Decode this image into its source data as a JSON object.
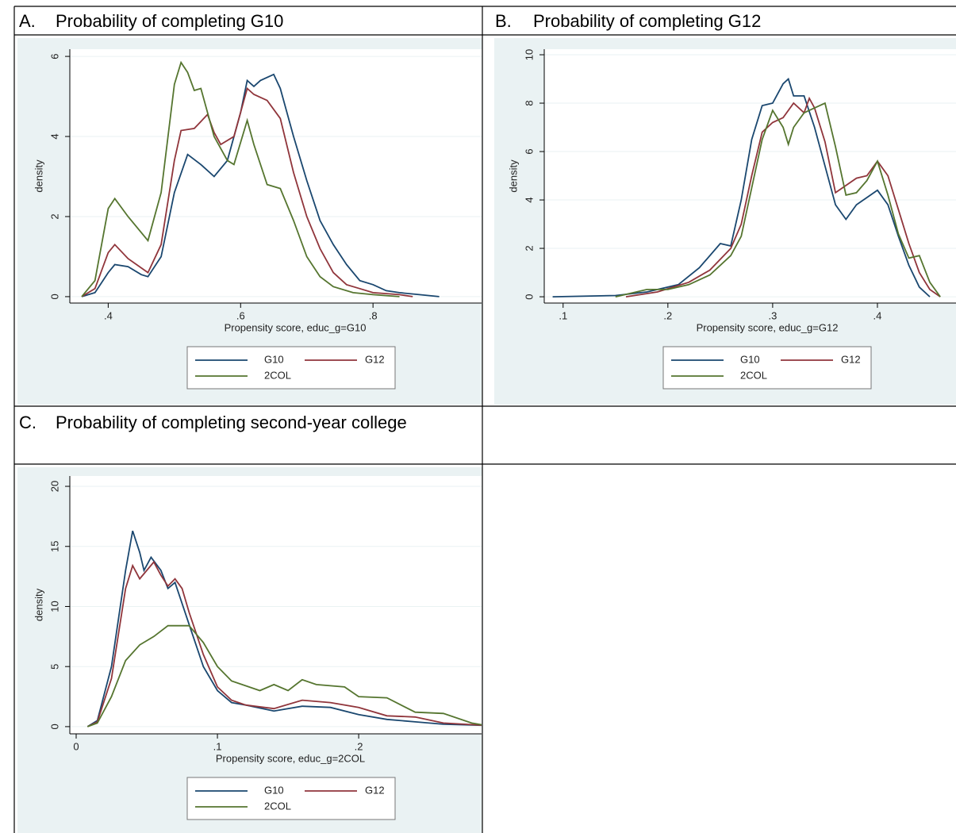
{
  "chart_data": [
    {
      "type": "line",
      "label": "A.",
      "title": "Probability of completing G10",
      "xlabel": "Propensity score, educ_g=G10",
      "ylabel": "density",
      "xlim": [
        0.342,
        0.964
      ],
      "ylim": [
        -0.16,
        6.18
      ],
      "xticks": [
        {
          "value": 0.4,
          "label": ".4"
        },
        {
          "value": 0.6,
          "label": ".6"
        },
        {
          "value": 0.8,
          "label": ".8"
        }
      ],
      "yticks": [
        0,
        2,
        4,
        6
      ],
      "grid": true,
      "series": [
        {
          "name": "G10",
          "color": "#1a476f",
          "x": [
            0.36,
            0.38,
            0.4,
            0.41,
            0.43,
            0.45,
            0.46,
            0.48,
            0.5,
            0.52,
            0.54,
            0.56,
            0.58,
            0.6,
            0.61,
            0.62,
            0.63,
            0.65,
            0.66,
            0.68,
            0.7,
            0.72,
            0.74,
            0.76,
            0.78,
            0.8,
            0.82,
            0.84,
            0.87,
            0.9
          ],
          "values": [
            0,
            0.1,
            0.6,
            0.8,
            0.75,
            0.55,
            0.5,
            1.0,
            2.6,
            3.55,
            3.3,
            3.0,
            3.4,
            4.6,
            5.4,
            5.25,
            5.4,
            5.55,
            5.2,
            4.0,
            2.9,
            1.9,
            1.3,
            0.8,
            0.4,
            0.3,
            0.15,
            0.1,
            0.05,
            0
          ]
        },
        {
          "name": "G12",
          "color": "#90353b",
          "x": [
            0.36,
            0.38,
            0.4,
            0.41,
            0.43,
            0.46,
            0.48,
            0.5,
            0.51,
            0.53,
            0.55,
            0.56,
            0.57,
            0.59,
            0.61,
            0.62,
            0.64,
            0.66,
            0.68,
            0.7,
            0.72,
            0.74,
            0.76,
            0.78,
            0.8,
            0.84,
            0.86
          ],
          "values": [
            0,
            0.2,
            1.1,
            1.3,
            0.95,
            0.6,
            1.3,
            3.4,
            4.15,
            4.2,
            4.55,
            4.1,
            3.8,
            4.0,
            5.2,
            5.05,
            4.9,
            4.45,
            3.1,
            2.0,
            1.2,
            0.6,
            0.3,
            0.2,
            0.1,
            0.05,
            0
          ]
        },
        {
          "name": "2COL",
          "color": "#55752f",
          "x": [
            0.36,
            0.38,
            0.4,
            0.41,
            0.43,
            0.46,
            0.48,
            0.5,
            0.51,
            0.52,
            0.53,
            0.54,
            0.56,
            0.58,
            0.59,
            0.61,
            0.62,
            0.64,
            0.66,
            0.68,
            0.7,
            0.72,
            0.74,
            0.77,
            0.8,
            0.84
          ],
          "values": [
            0,
            0.4,
            2.2,
            2.45,
            2.0,
            1.4,
            2.6,
            5.3,
            5.85,
            5.6,
            5.15,
            5.2,
            4.0,
            3.4,
            3.3,
            4.4,
            3.8,
            2.8,
            2.7,
            1.9,
            1.0,
            0.5,
            0.25,
            0.1,
            0.05,
            0
          ]
        }
      ]
    },
    {
      "type": "line",
      "label": "B.",
      "title": "Probability of completing G12",
      "xlabel": "Propensity score, educ_g=G12",
      "ylabel": "density",
      "xlim": [
        0.082,
        0.475
      ],
      "ylim": [
        -0.26,
        10.23
      ],
      "xticks": [
        {
          "value": 0.1,
          "label": ".1"
        },
        {
          "value": 0.2,
          "label": ".2"
        },
        {
          "value": 0.3,
          "label": ".3"
        },
        {
          "value": 0.4,
          "label": ".4"
        }
      ],
      "yticks": [
        0,
        2,
        4,
        6,
        8,
        10
      ],
      "grid": true,
      "series": [
        {
          "name": "G10",
          "color": "#1a476f",
          "x": [
            0.09,
            0.15,
            0.18,
            0.21,
            0.23,
            0.25,
            0.26,
            0.27,
            0.28,
            0.29,
            0.3,
            0.31,
            0.315,
            0.32,
            0.33,
            0.34,
            0.35,
            0.36,
            0.37,
            0.38,
            0.39,
            0.4,
            0.41,
            0.42,
            0.43,
            0.44,
            0.45
          ],
          "values": [
            0,
            0.05,
            0.2,
            0.5,
            1.2,
            2.2,
            2.1,
            4,
            6.5,
            7.9,
            8.0,
            8.8,
            9.0,
            8.3,
            8.3,
            7.0,
            5.4,
            3.8,
            3.2,
            3.8,
            4.1,
            4.4,
            3.8,
            2.5,
            1.3,
            0.4,
            0
          ]
        },
        {
          "name": "G12",
          "color": "#90353b",
          "x": [
            0.16,
            0.19,
            0.22,
            0.24,
            0.26,
            0.27,
            0.28,
            0.29,
            0.3,
            0.31,
            0.32,
            0.33,
            0.335,
            0.34,
            0.35,
            0.36,
            0.37,
            0.38,
            0.39,
            0.4,
            0.41,
            0.42,
            0.43,
            0.44,
            0.45,
            0.46
          ],
          "values": [
            0,
            0.2,
            0.6,
            1.1,
            2.0,
            3.0,
            5,
            6.8,
            7.2,
            7.4,
            8.0,
            7.6,
            8.2,
            7.8,
            6.4,
            4.3,
            4.6,
            4.9,
            5.0,
            5.6,
            5.0,
            3.6,
            2.2,
            1.0,
            0.3,
            0
          ]
        },
        {
          "name": "2COL",
          "color": "#55752f",
          "x": [
            0.15,
            0.18,
            0.2,
            0.22,
            0.24,
            0.26,
            0.27,
            0.28,
            0.29,
            0.3,
            0.31,
            0.315,
            0.32,
            0.33,
            0.34,
            0.35,
            0.36,
            0.37,
            0.38,
            0.39,
            0.4,
            0.41,
            0.42,
            0.43,
            0.44,
            0.45,
            0.46
          ],
          "values": [
            0,
            0.3,
            0.3,
            0.5,
            0.9,
            1.7,
            2.5,
            4.5,
            6.5,
            7.7,
            7.0,
            6.3,
            7.0,
            7.6,
            7.8,
            8.0,
            6.2,
            4.2,
            4.3,
            4.8,
            5.6,
            4.2,
            2.6,
            1.6,
            1.7,
            0.6,
            0
          ]
        }
      ]
    },
    {
      "type": "line",
      "label": "C.",
      "title": "Probability of completing second-year college",
      "xlabel": "Propensity score, educ_g=2COL",
      "ylabel": "density",
      "xlim": [
        -0.0045,
        0.287
      ],
      "ylim": [
        -0.6,
        20.86
      ],
      "xticks": [
        0,
        {
          "value": 0.1,
          "label": ".1"
        },
        {
          "value": 0.2,
          "label": ".2"
        }
      ],
      "yticks": [
        0,
        5,
        10,
        15,
        20
      ],
      "grid": true,
      "series": [
        {
          "name": "G10",
          "color": "#1a476f",
          "x": [
            0.008,
            0.015,
            0.025,
            0.035,
            0.04,
            0.045,
            0.048,
            0.053,
            0.06,
            0.065,
            0.07,
            0.08,
            0.09,
            0.1,
            0.11,
            0.12,
            0.14,
            0.16,
            0.18,
            0.2,
            0.22,
            0.24,
            0.26,
            0.29
          ],
          "values": [
            0,
            0.5,
            5,
            13,
            16.3,
            14.5,
            13.0,
            14.1,
            13.0,
            11.5,
            12.0,
            8.5,
            5,
            3,
            2.0,
            1.8,
            1.3,
            1.7,
            1.6,
            1.0,
            0.6,
            0.4,
            0.2,
            0.1
          ]
        },
        {
          "name": "G12",
          "color": "#90353b",
          "x": [
            0.008,
            0.015,
            0.025,
            0.035,
            0.04,
            0.045,
            0.05,
            0.055,
            0.06,
            0.065,
            0.07,
            0.075,
            0.08,
            0.09,
            0.1,
            0.11,
            0.12,
            0.14,
            0.16,
            0.18,
            0.2,
            0.22,
            0.24,
            0.26,
            0.29
          ],
          "values": [
            0,
            0.4,
            4,
            11.5,
            13.4,
            12.3,
            13.0,
            13.7,
            12.6,
            11.7,
            12.3,
            11.5,
            9.5,
            6,
            3.3,
            2.2,
            1.8,
            1.5,
            2.2,
            2.0,
            1.6,
            0.9,
            0.8,
            0.3,
            0.1
          ]
        },
        {
          "name": "2COL",
          "color": "#55752f",
          "x": [
            0.008,
            0.015,
            0.025,
            0.035,
            0.045,
            0.055,
            0.065,
            0.07,
            0.08,
            0.09,
            0.1,
            0.11,
            0.13,
            0.14,
            0.15,
            0.16,
            0.17,
            0.19,
            0.2,
            0.22,
            0.23,
            0.24,
            0.26,
            0.28,
            0.29
          ],
          "values": [
            0,
            0.3,
            2.5,
            5.5,
            6.8,
            7.5,
            8.4,
            8.4,
            8.4,
            7,
            5,
            3.8,
            3.0,
            3.5,
            3.0,
            3.9,
            3.5,
            3.3,
            2.5,
            2.4,
            1.8,
            1.2,
            1.1,
            0.3,
            0.1
          ]
        }
      ]
    }
  ]
}
